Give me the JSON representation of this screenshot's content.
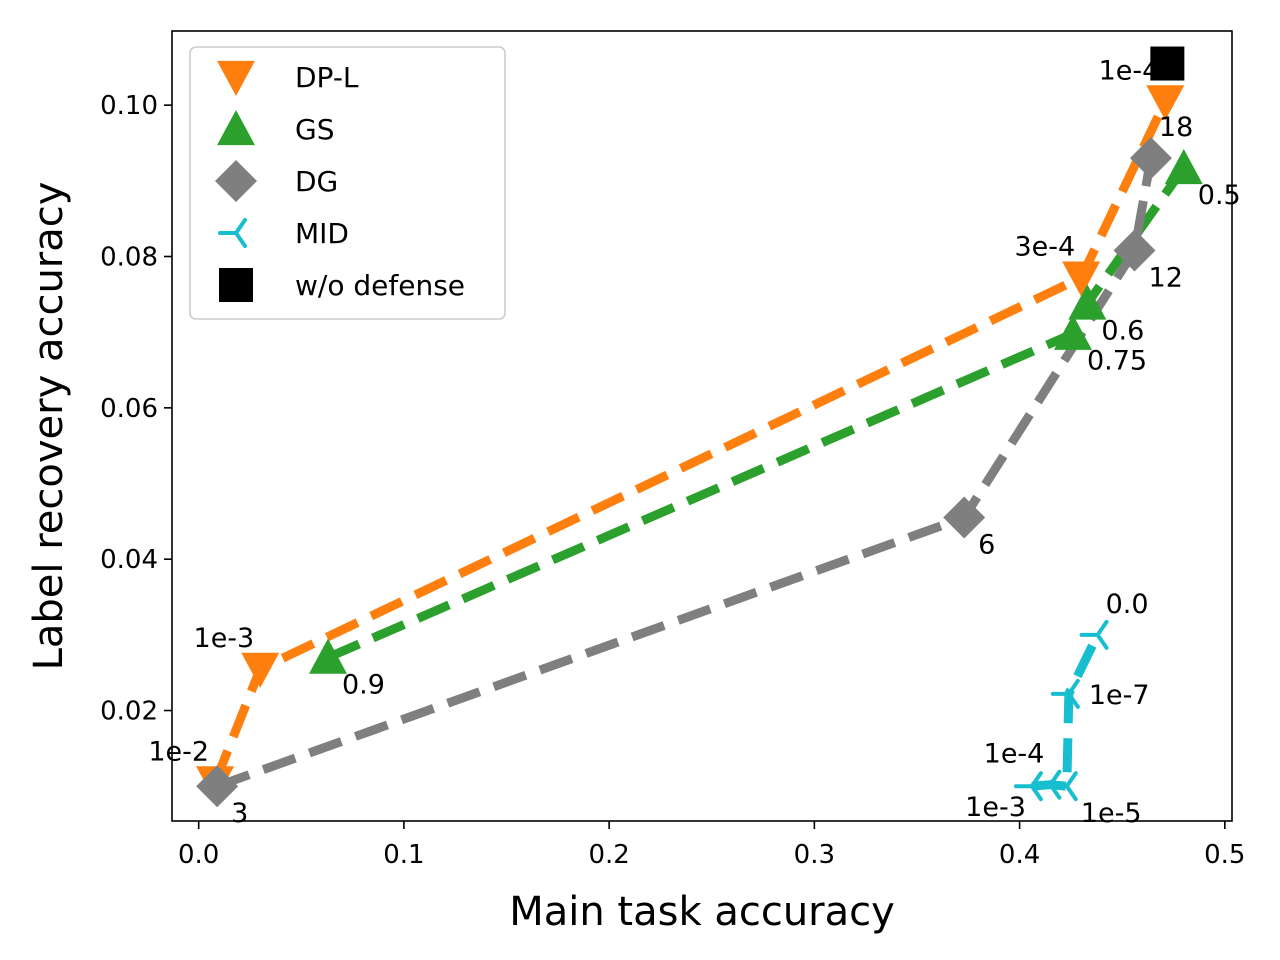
{
  "chart_data": {
    "type": "line",
    "title": "",
    "xlabel": "Main task accuracy",
    "ylabel": "Label recovery accuracy",
    "xlim": [
      -0.013,
      0.5035
    ],
    "ylim": [
      0.0054,
      0.1098
    ],
    "xticks": [
      0.0,
      0.1,
      0.2,
      0.3,
      0.4,
      0.5
    ],
    "xtick_labels": [
      "0.0",
      "0.1",
      "0.2",
      "0.3",
      "0.4",
      "0.5"
    ],
    "yticks": [
      0.02,
      0.04,
      0.06,
      0.08,
      0.1
    ],
    "ytick_labels": [
      "0.02",
      "0.04",
      "0.06",
      "0.08",
      "0.10"
    ],
    "legend_position": "top-left",
    "series": [
      {
        "name": "DP-L",
        "color": "#ff7f0e",
        "marker": "triangle-down",
        "points": [
          {
            "x": 0.008,
            "y": 0.0105,
            "label": "1e-2",
            "label_pos": "above-left"
          },
          {
            "x": 0.03,
            "y": 0.0255,
            "label": "1e-3",
            "label_pos": "above-left"
          },
          {
            "x": 0.43,
            "y": 0.0772,
            "label": "3e-4",
            "label_pos": "above-left"
          },
          {
            "x": 0.471,
            "y": 0.1005,
            "label": "1e-4",
            "label_pos": "above-left"
          }
        ]
      },
      {
        "name": "GS",
        "color": "#2ca02c",
        "marker": "triangle-up",
        "points": [
          {
            "x": 0.063,
            "y": 0.027,
            "label": "0.9",
            "label_pos": "below-right"
          },
          {
            "x": 0.426,
            "y": 0.0698,
            "label": "0.75",
            "label_pos": "below-right"
          },
          {
            "x": 0.433,
            "y": 0.0738,
            "label": "0.6",
            "label_pos": "below-right"
          },
          {
            "x": 0.48,
            "y": 0.0917,
            "label": "0.5",
            "label_pos": "below-right"
          }
        ]
      },
      {
        "name": "DG",
        "color": "#7f7f7f",
        "marker": "diamond",
        "points": [
          {
            "x": 0.009,
            "y": 0.01,
            "label": "3",
            "label_pos": "below-right"
          },
          {
            "x": 0.373,
            "y": 0.0455,
            "label": "6",
            "label_pos": "below-right"
          },
          {
            "x": 0.456,
            "y": 0.0808,
            "label": "12",
            "label_pos": "below-right"
          },
          {
            "x": 0.464,
            "y": 0.093,
            "label": "18",
            "label_pos": "above-right"
          }
        ]
      },
      {
        "name": "MID",
        "color": "#17becf",
        "marker": "tri-left",
        "points": [
          {
            "x": 0.406,
            "y": 0.01,
            "label": "1e-3",
            "label_pos": "below-left"
          },
          {
            "x": 0.415,
            "y": 0.0102,
            "label": "1e-4",
            "label_pos": "above-left"
          },
          {
            "x": 0.423,
            "y": 0.01,
            "label": "1e-5",
            "label_pos": "below-right"
          },
          {
            "x": 0.424,
            "y": 0.0222,
            "label": "1e-7",
            "label_pos": "right"
          },
          {
            "x": 0.438,
            "y": 0.03,
            "label": "0.0",
            "label_pos": "above-right"
          }
        ]
      },
      {
        "name": "w/o defense",
        "color": "#000000",
        "marker": "square",
        "points": [
          {
            "x": 0.472,
            "y": 0.1055,
            "label": "",
            "label_pos": ""
          }
        ]
      }
    ]
  }
}
